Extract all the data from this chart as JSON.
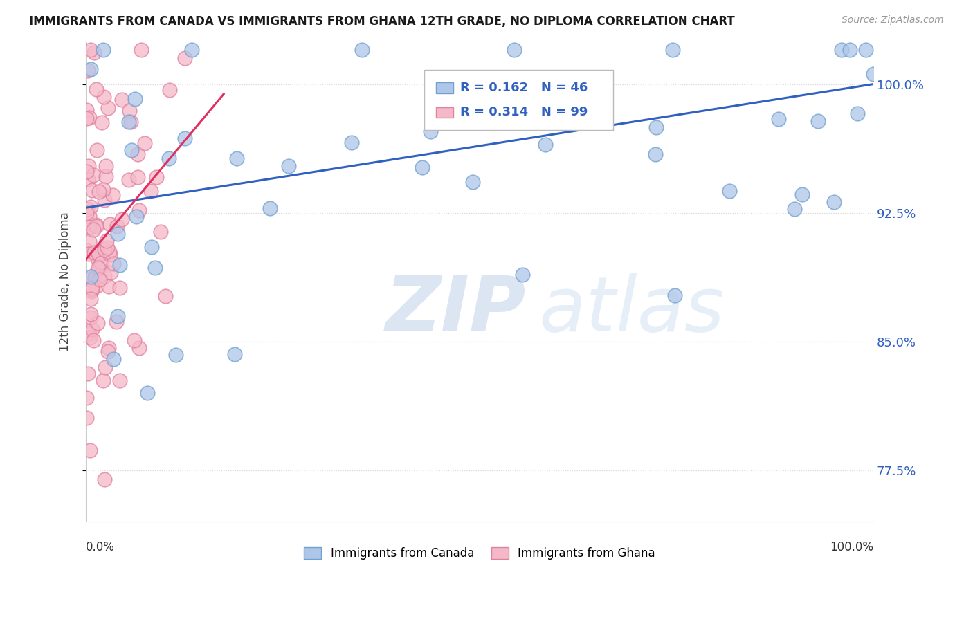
{
  "title": "IMMIGRANTS FROM CANADA VS IMMIGRANTS FROM GHANA 12TH GRADE, NO DIPLOMA CORRELATION CHART",
  "source": "Source: ZipAtlas.com",
  "ylabel": "12th Grade, No Diploma",
  "xmin": 0.0,
  "xmax": 1.0,
  "ymin": 0.745,
  "ymax": 1.025,
  "canada_color": "#aec6e8",
  "ghana_color": "#f5b8c8",
  "canada_edge": "#6fa0d0",
  "ghana_edge": "#e080a0",
  "canada_line_color": "#3060c0",
  "ghana_line_color": "#e03060",
  "R_canada": 0.162,
  "N_canada": 46,
  "R_ghana": 0.314,
  "N_ghana": 99,
  "watermark_zip_color": "#c0d0e8",
  "watermark_atlas_color": "#c8daf0",
  "grid_color": "#d8d8d8",
  "ytick_color": "#3060c0",
  "canada_line_intercept": 0.928,
  "canada_line_slope": 0.072,
  "ghana_line_intercept": 0.898,
  "ghana_line_slope": 0.55,
  "ghana_line_xmax": 0.175
}
